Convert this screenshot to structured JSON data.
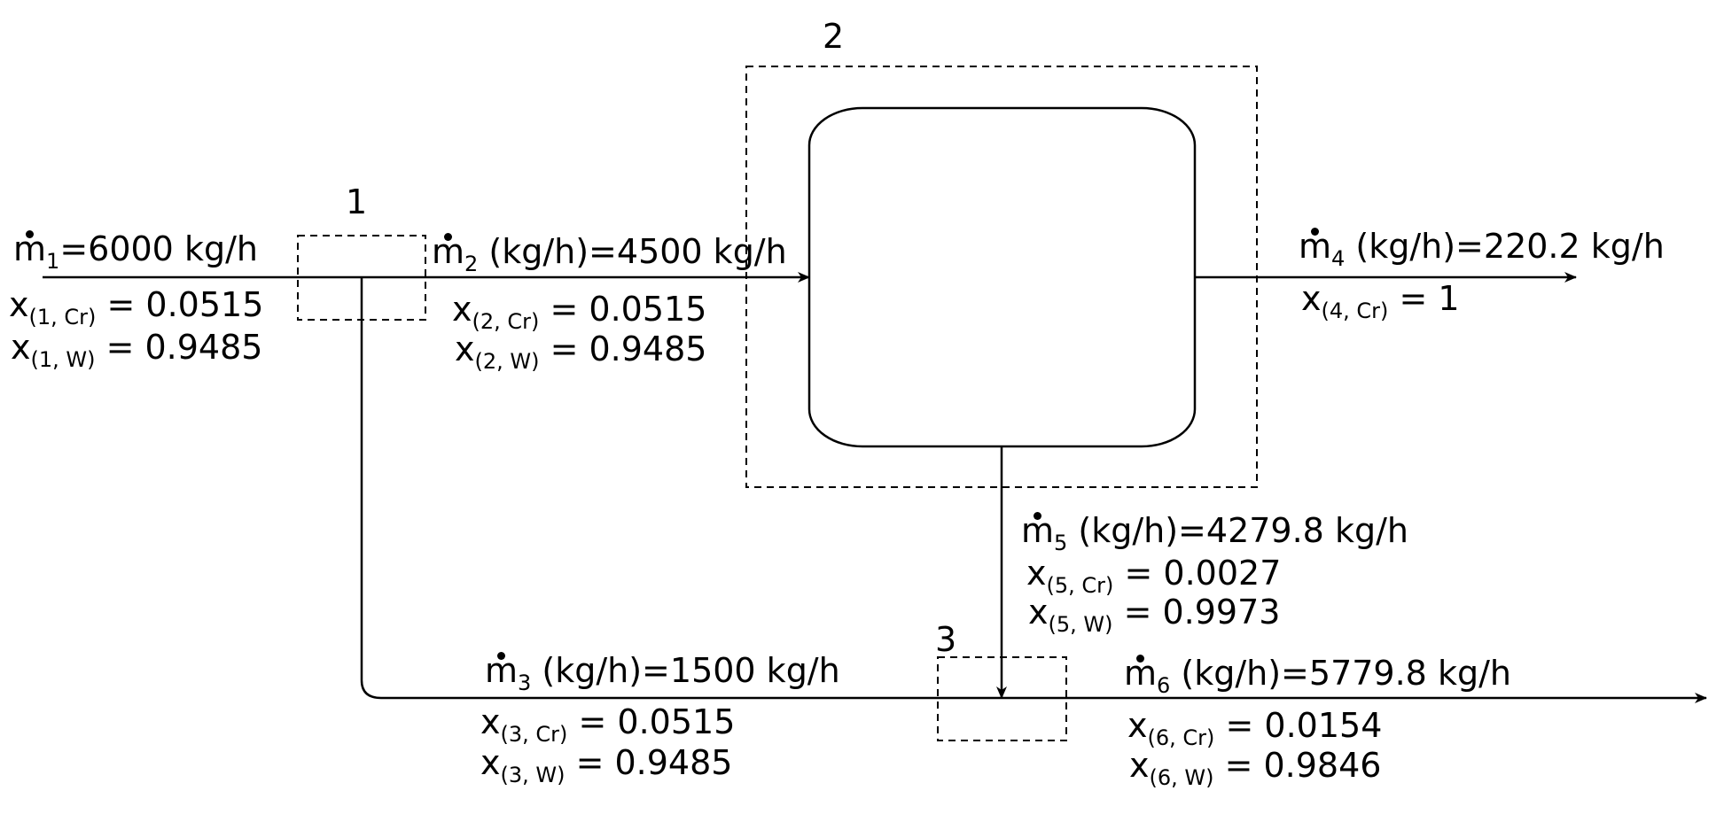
{
  "units": {
    "1": "1",
    "2": "2",
    "3": "3"
  },
  "streams": {
    "m1": {
      "sym": "m",
      "idx": "1",
      "flow": "=6000 kg/h",
      "x_cr": "(1, Cr)",
      "x_cr_val": "= 0.0515",
      "x_w": "(1, W)",
      "x_w_val": "= 0.9485"
    },
    "m2": {
      "sym": "m",
      "idx": "2",
      "flow": " (kg/h)=4500 kg/h",
      "x_cr": "(2, Cr)",
      "x_cr_val": "= 0.0515",
      "x_w": "(2, W)",
      "x_w_val": "= 0.9485"
    },
    "m3": {
      "sym": "m",
      "idx": "3",
      "flow": " (kg/h)=1500 kg/h",
      "x_cr": "(3, Cr)",
      "x_cr_val": "= 0.0515",
      "x_w": "(3, W)",
      "x_w_val": "= 0.9485"
    },
    "m4": {
      "sym": "m",
      "idx": "4",
      "flow": " (kg/h)=220.2 kg/h",
      "x_cr": "(4, Cr)",
      "x_cr_val": "= 1"
    },
    "m5": {
      "sym": "m",
      "idx": "5",
      "flow": " (kg/h)=4279.8 kg/h",
      "x_cr": "(5, Cr)",
      "x_cr_val": "= 0.0027",
      "x_w": "(5, W)",
      "x_w_val": "= 0.9973"
    },
    "m6": {
      "sym": "m",
      "idx": "6",
      "flow": " (kg/h)=5779.8 kg/h",
      "x_cr": "(6, Cr)",
      "x_cr_val": "= 0.0154",
      "x_w": "(6, W)",
      "x_w_val": "= 0.9846"
    }
  },
  "x_symbol": "x"
}
